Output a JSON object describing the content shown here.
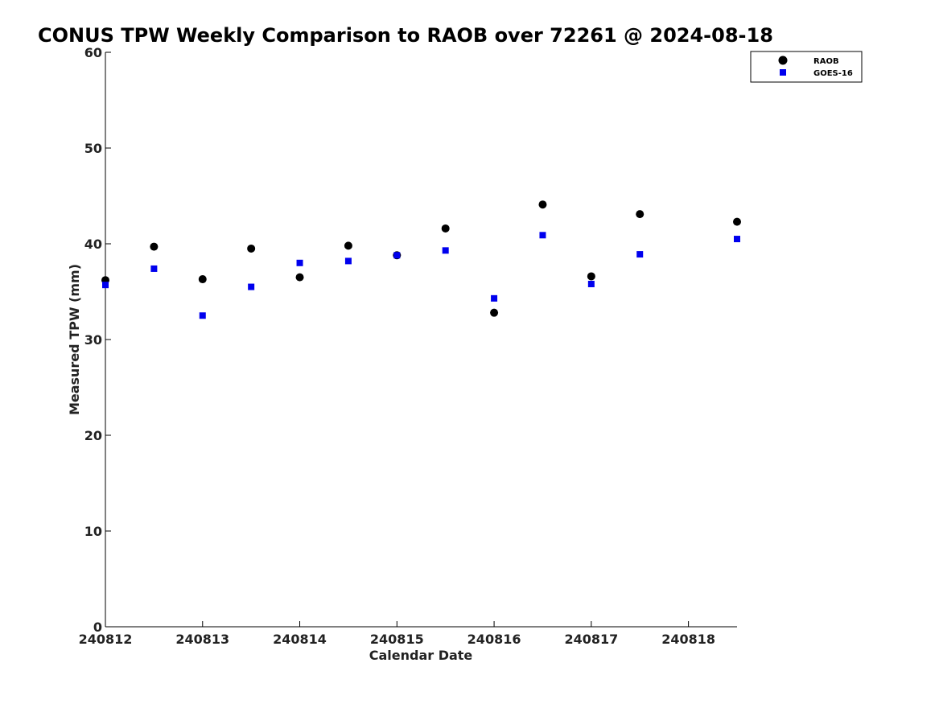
{
  "chart_data": {
    "type": "scatter",
    "title": "CONUS TPW Weekly Comparison to RAOB over 72261 @ 2024-08-18",
    "xlabel": "Calendar Date",
    "ylabel": "Measured TPW (mm)",
    "ylim": [
      0,
      60
    ],
    "yticks": [
      0,
      10,
      20,
      30,
      40,
      50,
      60
    ],
    "xlim": [
      "2024-08-12T00:00",
      "2024-08-18T12:00"
    ],
    "xticks": [
      {
        "x": "2024-08-12",
        "label": "240812"
      },
      {
        "x": "2024-08-13",
        "label": "240813"
      },
      {
        "x": "2024-08-14",
        "label": "240814"
      },
      {
        "x": "2024-08-15",
        "label": "240815"
      },
      {
        "x": "2024-08-16",
        "label": "240816"
      },
      {
        "x": "2024-08-17",
        "label": "240817"
      },
      {
        "x": "2024-08-18",
        "label": "240818"
      }
    ],
    "grid": false,
    "legend_position": "top-right",
    "series": [
      {
        "name": "RAOB",
        "color": "#000000",
        "marker": "circle",
        "points": [
          {
            "x": "2024-08-12T00:00",
            "y": 36.2
          },
          {
            "x": "2024-08-12T12:00",
            "y": 39.7
          },
          {
            "x": "2024-08-13T00:00",
            "y": 36.3
          },
          {
            "x": "2024-08-13T12:00",
            "y": 39.5
          },
          {
            "x": "2024-08-14T00:00",
            "y": 36.5
          },
          {
            "x": "2024-08-14T12:00",
            "y": 39.8
          },
          {
            "x": "2024-08-15T00:00",
            "y": 38.8
          },
          {
            "x": "2024-08-15T12:00",
            "y": 41.6
          },
          {
            "x": "2024-08-16T00:00",
            "y": 32.8
          },
          {
            "x": "2024-08-16T12:00",
            "y": 44.1
          },
          {
            "x": "2024-08-17T00:00",
            "y": 36.6
          },
          {
            "x": "2024-08-17T12:00",
            "y": 43.1
          },
          {
            "x": "2024-08-18T12:00",
            "y": 42.3
          }
        ]
      },
      {
        "name": "GOES-16",
        "color": "#0000ee",
        "marker": "square",
        "points": [
          {
            "x": "2024-08-12T00:00",
            "y": 35.7
          },
          {
            "x": "2024-08-12T12:00",
            "y": 37.4
          },
          {
            "x": "2024-08-13T00:00",
            "y": 32.5
          },
          {
            "x": "2024-08-13T12:00",
            "y": 35.5
          },
          {
            "x": "2024-08-14T00:00",
            "y": 38.0
          },
          {
            "x": "2024-08-14T12:00",
            "y": 38.2
          },
          {
            "x": "2024-08-15T00:00",
            "y": 38.8
          },
          {
            "x": "2024-08-15T12:00",
            "y": 39.3
          },
          {
            "x": "2024-08-16T00:00",
            "y": 34.3
          },
          {
            "x": "2024-08-16T12:00",
            "y": 40.9
          },
          {
            "x": "2024-08-17T00:00",
            "y": 35.8
          },
          {
            "x": "2024-08-17T12:00",
            "y": 38.9
          },
          {
            "x": "2024-08-18T12:00",
            "y": 40.5
          }
        ]
      }
    ]
  }
}
